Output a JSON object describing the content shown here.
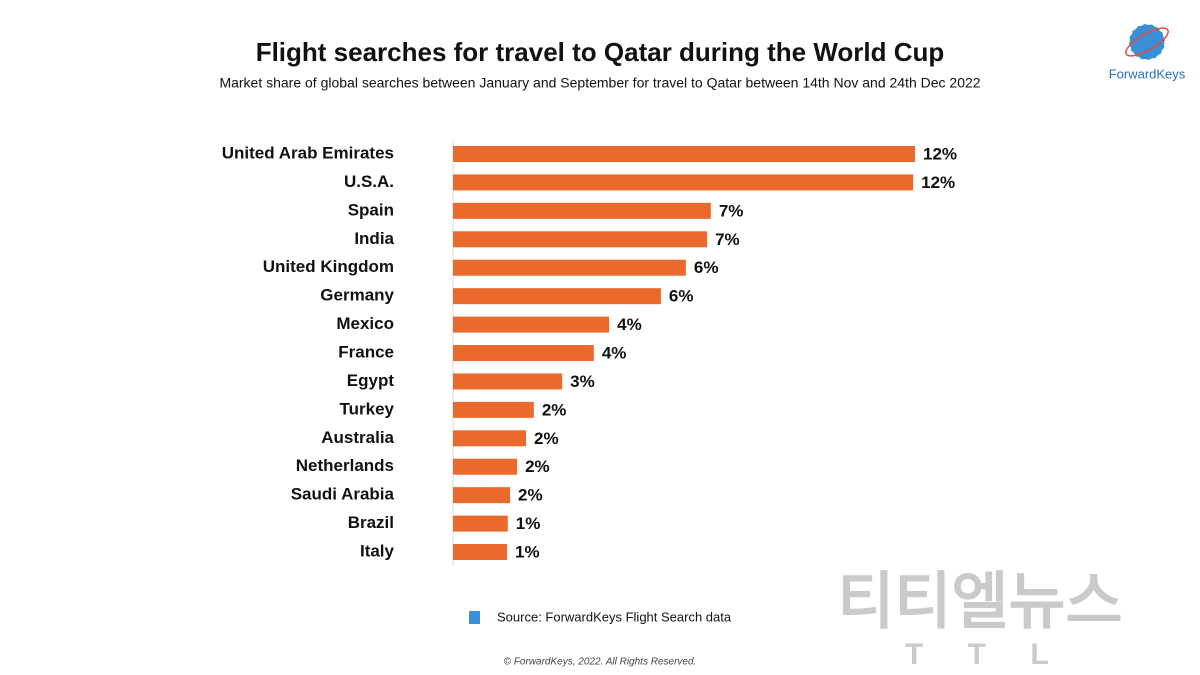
{
  "chart_data": {
    "type": "bar",
    "orientation": "horizontal",
    "title": "Flight searches for travel to Qatar during the World Cup",
    "subtitle": "Market share of global searches between January and September for travel to Qatar between 14th Nov and 24th Dec 2022",
    "categories": [
      "United Arab Emirates",
      "U.S.A.",
      "Spain",
      "India",
      "United Kingdom",
      "Germany",
      "Mexico",
      "France",
      "Egypt",
      "Turkey",
      "Australia",
      "Netherlands",
      "Saudi Arabia",
      "Brazil",
      "Italy"
    ],
    "values": [
      12.4,
      12.35,
      6.92,
      6.82,
      6.25,
      5.58,
      4.19,
      3.78,
      2.93,
      2.17,
      1.96,
      1.72,
      1.53,
      1.47,
      1.45
    ],
    "value_labels": [
      "12%",
      "12%",
      "7%",
      "7%",
      "6%",
      "6%",
      "4%",
      "4%",
      "3%",
      "2%",
      "2%",
      "2%",
      "2%",
      "1%",
      "1%"
    ],
    "color": "#ea6a2e",
    "source": "Source: ForwardKeys Flight Search data",
    "copyright": "© ForwardKeys, 2022. All Rights Reserved.",
    "logo": "ForwardKeys",
    "watermark": "티티엘뉴스",
    "watermark_sub": "T T L"
  }
}
